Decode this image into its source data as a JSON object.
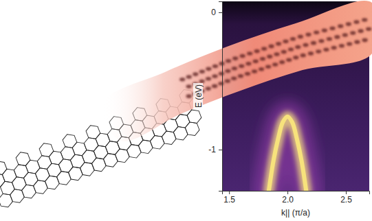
{
  "chart_data": {
    "type": "line",
    "xlabel": "k|| (π/a)",
    "ylabel": "E (eV)",
    "xlim": [
      1.44,
      2.7
    ],
    "ylim": [
      -1.3,
      0.08
    ],
    "xticks": [
      1.5,
      {
        "value": 2,
        "label": "2.0"
      },
      2.5
    ],
    "yticks": [
      -1,
      0
    ],
    "grid": false,
    "series": [
      {
        "color": "#f7e27c",
        "x": [
          1.84,
          1.88,
          1.92,
          1.96,
          2.0,
          2.04,
          2.08,
          2.12,
          2.16
        ],
        "values": [
          -1.3,
          -1.08,
          -0.92,
          -0.8,
          -0.76,
          -0.8,
          -0.92,
          -1.08,
          -1.3
        ]
      }
    ]
  }
}
